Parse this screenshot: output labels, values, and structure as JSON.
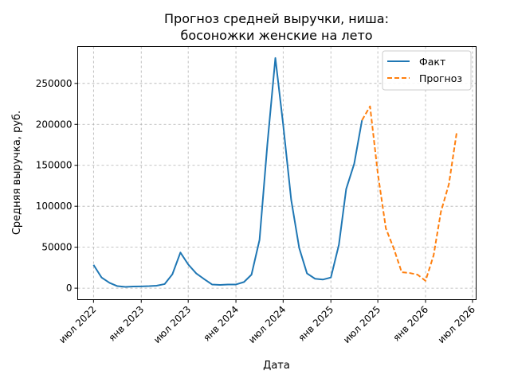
{
  "chart_data": {
    "type": "line",
    "title_lines": [
      "Прогноз средней выручки, ниша:",
      "босоножки женские на лето"
    ],
    "xlabel": "Дата",
    "ylabel": "Средняя выручка, руб.",
    "x_ticks": [
      {
        "date": "2022-07-01",
        "label": "июл 2022"
      },
      {
        "date": "2023-01-01",
        "label": "янв 2023"
      },
      {
        "date": "2023-07-01",
        "label": "июл 2023"
      },
      {
        "date": "2024-01-01",
        "label": "янв 2024"
      },
      {
        "date": "2024-07-01",
        "label": "июл 2024"
      },
      {
        "date": "2025-01-01",
        "label": "янв 2025"
      },
      {
        "date": "2025-07-01",
        "label": "июл 2025"
      },
      {
        "date": "2026-01-01",
        "label": "янв 2026"
      },
      {
        "date": "2026-07-01",
        "label": "июл 2026"
      }
    ],
    "y_ticks": [
      0,
      50000,
      100000,
      150000,
      200000,
      250000
    ],
    "xlim": [
      "2022-05-01",
      "2026-07-15"
    ],
    "ylim": [
      -14000,
      295000
    ],
    "grid": true,
    "legend_position": "top-right",
    "series": [
      {
        "name": "Факт",
        "color": "#1f77b4",
        "style": "solid",
        "points": [
          [
            "2022-07-01",
            28500
          ],
          [
            "2022-08-01",
            13000
          ],
          [
            "2022-09-01",
            6500
          ],
          [
            "2022-10-01",
            2500
          ],
          [
            "2022-11-01",
            1500
          ],
          [
            "2022-12-01",
            2000
          ],
          [
            "2023-01-01",
            2200
          ],
          [
            "2023-02-01",
            2500
          ],
          [
            "2023-03-01",
            3000
          ],
          [
            "2023-04-01",
            5000
          ],
          [
            "2023-05-01",
            17000
          ],
          [
            "2023-06-01",
            43500
          ],
          [
            "2023-07-01",
            29000
          ],
          [
            "2023-08-01",
            18000
          ],
          [
            "2023-09-01",
            11000
          ],
          [
            "2023-10-01",
            4500
          ],
          [
            "2023-11-01",
            4000
          ],
          [
            "2023-12-01",
            4500
          ],
          [
            "2024-01-01",
            4500
          ],
          [
            "2024-02-01",
            7500
          ],
          [
            "2024-03-01",
            16500
          ],
          [
            "2024-04-01",
            59000
          ],
          [
            "2024-05-01",
            175000
          ],
          [
            "2024-06-01",
            281000
          ],
          [
            "2024-07-01",
            200000
          ],
          [
            "2024-08-01",
            108000
          ],
          [
            "2024-09-01",
            49000
          ],
          [
            "2024-10-01",
            18000
          ],
          [
            "2024-11-01",
            11500
          ],
          [
            "2024-12-01",
            10500
          ],
          [
            "2025-01-01",
            13000
          ],
          [
            "2025-02-01",
            53000
          ],
          [
            "2025-03-01",
            121000
          ],
          [
            "2025-04-01",
            152000
          ],
          [
            "2025-05-01",
            205000
          ]
        ]
      },
      {
        "name": "Прогноз",
        "color": "#ff7f0e",
        "style": "dashed",
        "points": [
          [
            "2025-05-01",
            205000
          ],
          [
            "2025-06-01",
            222000
          ],
          [
            "2025-07-01",
            140000
          ],
          [
            "2025-08-01",
            73000
          ],
          [
            "2025-09-01",
            48000
          ],
          [
            "2025-10-01",
            19500
          ],
          [
            "2025-11-01",
            18500
          ],
          [
            "2025-12-01",
            16500
          ],
          [
            "2026-01-01",
            9000
          ],
          [
            "2026-02-01",
            40000
          ],
          [
            "2026-03-01",
            93000
          ],
          [
            "2026-04-01",
            127000
          ],
          [
            "2026-05-01",
            190000
          ]
        ]
      }
    ]
  }
}
